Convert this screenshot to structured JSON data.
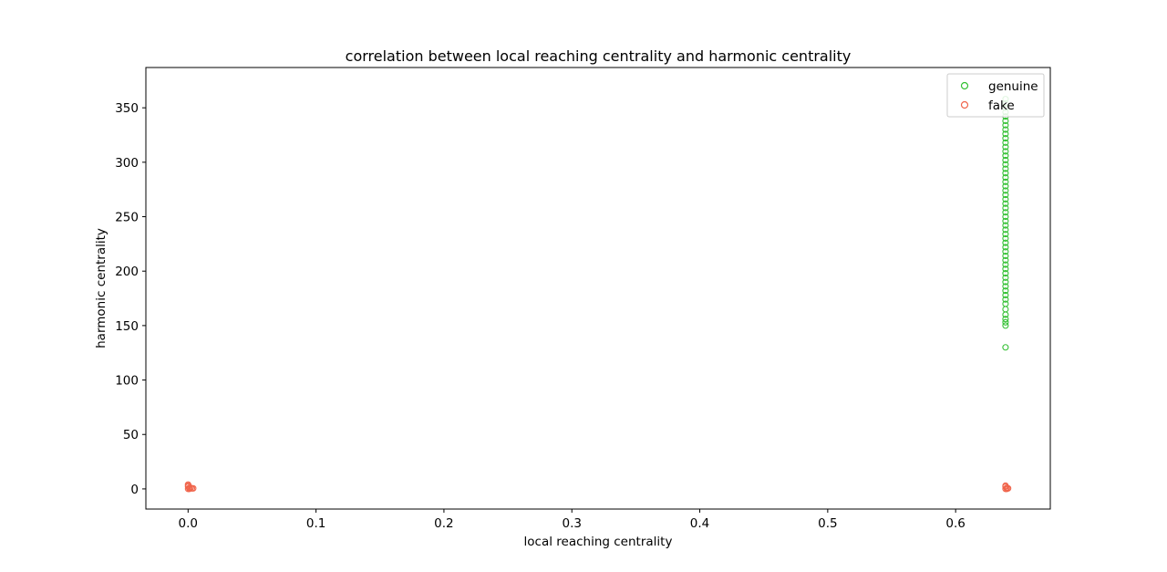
{
  "chart_data": {
    "type": "scatter",
    "title": "correlation between local reaching centrality and harmonic centrality",
    "xlabel": "local reaching centrality",
    "ylabel": "harmonic centrality",
    "xlim": [
      -0.033,
      0.674
    ],
    "ylim": [
      -18.5,
      387
    ],
    "xticks": [
      0.0,
      0.1,
      0.2,
      0.3,
      0.4,
      0.5,
      0.6
    ],
    "xtick_labels": [
      "0.0",
      "0.1",
      "0.2",
      "0.3",
      "0.4",
      "0.5",
      "0.6"
    ],
    "yticks": [
      0,
      50,
      100,
      150,
      200,
      250,
      300,
      350
    ],
    "ytick_labels": [
      "0",
      "50",
      "100",
      "150",
      "200",
      "250",
      "300",
      "350"
    ],
    "grid": false,
    "legend_position": "upper right",
    "marker": "hollow-circle",
    "series": [
      {
        "name": "genuine",
        "color": "#33c033",
        "points": [
          [
            0.639,
            130
          ],
          [
            0.639,
            150
          ],
          [
            0.639,
            153
          ],
          [
            0.639,
            156
          ],
          [
            0.639,
            160
          ],
          [
            0.639,
            165
          ],
          [
            0.639,
            170
          ],
          [
            0.639,
            174
          ],
          [
            0.639,
            178
          ],
          [
            0.639,
            182
          ],
          [
            0.639,
            186
          ],
          [
            0.639,
            190
          ],
          [
            0.639,
            194
          ],
          [
            0.639,
            198
          ],
          [
            0.639,
            202
          ],
          [
            0.639,
            206
          ],
          [
            0.639,
            210
          ],
          [
            0.639,
            214
          ],
          [
            0.639,
            218
          ],
          [
            0.639,
            222
          ],
          [
            0.639,
            226
          ],
          [
            0.639,
            230
          ],
          [
            0.639,
            234
          ],
          [
            0.639,
            238
          ],
          [
            0.639,
            242
          ],
          [
            0.639,
            246
          ],
          [
            0.639,
            250
          ],
          [
            0.639,
            254
          ],
          [
            0.639,
            258
          ],
          [
            0.639,
            262
          ],
          [
            0.639,
            266
          ],
          [
            0.639,
            270
          ],
          [
            0.639,
            274
          ],
          [
            0.639,
            278
          ],
          [
            0.639,
            282
          ],
          [
            0.639,
            286
          ],
          [
            0.639,
            290
          ],
          [
            0.639,
            294
          ],
          [
            0.639,
            298
          ],
          [
            0.639,
            302
          ],
          [
            0.639,
            306
          ],
          [
            0.639,
            310
          ],
          [
            0.639,
            314
          ],
          [
            0.639,
            318
          ],
          [
            0.639,
            322
          ],
          [
            0.639,
            326
          ],
          [
            0.639,
            330
          ],
          [
            0.639,
            334
          ],
          [
            0.639,
            338
          ],
          [
            0.639,
            342
          ],
          [
            0.639,
            346
          ],
          [
            0.639,
            350
          ],
          [
            0.639,
            354
          ],
          [
            0.639,
            358
          ]
        ]
      },
      {
        "name": "fake",
        "color": "#f0644b",
        "points": [
          [
            0.0,
            4
          ],
          [
            0.0,
            3
          ],
          [
            0.0,
            2
          ],
          [
            0.001,
            1
          ],
          [
            0.002,
            1
          ],
          [
            0.003,
            0.5
          ],
          [
            0.004,
            0.5
          ],
          [
            0.0,
            0
          ],
          [
            0.001,
            0
          ],
          [
            0.639,
            3
          ],
          [
            0.639,
            2
          ],
          [
            0.64,
            1
          ],
          [
            0.641,
            0.5
          ],
          [
            0.639,
            0
          ],
          [
            0.64,
            0
          ]
        ]
      }
    ]
  }
}
